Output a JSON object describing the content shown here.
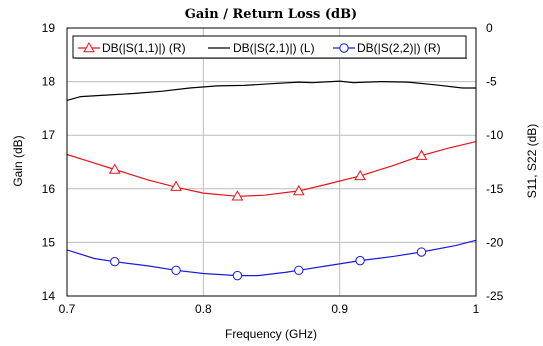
{
  "chart_data": {
    "type": "line",
    "title": "Gain / Return Loss (dB)",
    "xlabel": "Frequency (GHz)",
    "ylabel_left": "Gain (dB)",
    "ylabel_right": "S11, S22 (dB)",
    "xlim": [
      0.7,
      1.0
    ],
    "ylim_left": [
      14,
      19
    ],
    "ylim_right": [
      -25,
      0
    ],
    "x_ticks": [
      "0.7",
      "0.8",
      "0.9",
      "1"
    ],
    "y_ticks_left": [
      "14",
      "15",
      "16",
      "17",
      "18",
      "19"
    ],
    "y_ticks_right": [
      "-25",
      "-20",
      "-15",
      "-10",
      "-5",
      "0"
    ],
    "grid": true,
    "legend_position": "top",
    "colors": {
      "s11": "#e8141c",
      "s21": "#000000",
      "s22": "#1a1ae0"
    },
    "series": [
      {
        "name": "DB(|S(1,1)|) (R)",
        "axis": "right",
        "color": "#e8141c",
        "marker": "triangle",
        "x": [
          0.7,
          0.715,
          0.735,
          0.76,
          0.78,
          0.8,
          0.825,
          0.845,
          0.87,
          0.89,
          0.915,
          0.94,
          0.96,
          0.98,
          1.0
        ],
        "y": [
          -11.8,
          -12.4,
          -13.2,
          -14.2,
          -14.85,
          -15.4,
          -15.7,
          -15.6,
          -15.2,
          -14.6,
          -13.8,
          -12.8,
          -11.9,
          -11.2,
          -10.6
        ],
        "marker_x": [
          0.735,
          0.78,
          0.825,
          0.87,
          0.915,
          0.96
        ],
        "marker_y": [
          -13.2,
          -14.8,
          -15.7,
          -15.2,
          -13.8,
          -11.9
        ]
      },
      {
        "name": "DB(|S(2,1)|) (L)",
        "axis": "left",
        "color": "#000000",
        "marker": "none",
        "x": [
          0.7,
          0.71,
          0.73,
          0.75,
          0.77,
          0.79,
          0.81,
          0.83,
          0.85,
          0.87,
          0.88,
          0.9,
          0.91,
          0.93,
          0.95,
          0.97,
          0.99,
          1.0
        ],
        "y": [
          17.65,
          17.72,
          17.75,
          17.78,
          17.82,
          17.88,
          17.92,
          17.93,
          17.96,
          17.99,
          17.98,
          18.01,
          17.98,
          18.0,
          17.99,
          17.94,
          17.88,
          17.88
        ],
        "marker_x": [],
        "marker_y": []
      },
      {
        "name": "DB(|S(2,2)|) (R)",
        "axis": "right",
        "color": "#1a1ae0",
        "marker": "circle",
        "x": [
          0.7,
          0.72,
          0.735,
          0.76,
          0.78,
          0.8,
          0.825,
          0.84,
          0.86,
          0.87,
          0.89,
          0.915,
          0.94,
          0.96,
          0.985,
          1.0
        ],
        "y": [
          -20.7,
          -21.5,
          -21.8,
          -22.2,
          -22.6,
          -22.9,
          -23.1,
          -23.1,
          -22.8,
          -22.6,
          -22.2,
          -21.7,
          -21.3,
          -20.9,
          -20.3,
          -19.8
        ],
        "marker_x": [
          0.735,
          0.78,
          0.825,
          0.87,
          0.915,
          0.96
        ],
        "marker_y": [
          -21.8,
          -22.6,
          -23.1,
          -22.6,
          -21.7,
          -20.9
        ]
      }
    ]
  }
}
